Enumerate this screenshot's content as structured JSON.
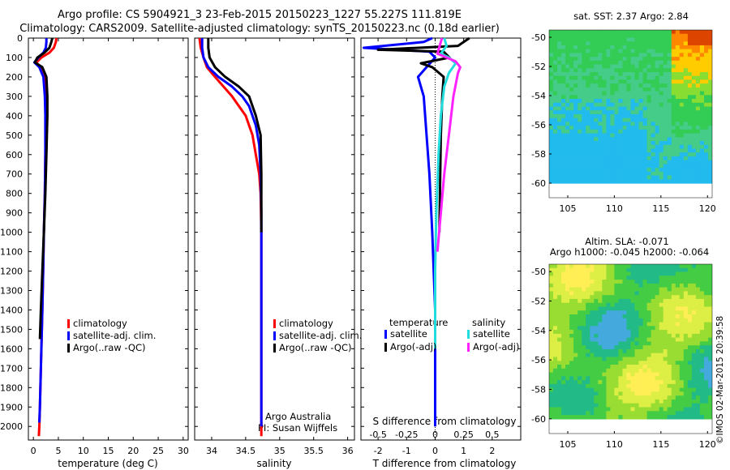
{
  "header": {
    "line1": "Argo profile: CS 5904921_3 23-Feb-2015 20150223_1227 55.227S 111.819E",
    "line2": "Climatology: CARS2009. Satellite-adjusted climatology: synTS_20150223.nc (0.18d earlier)"
  },
  "side_stamp": "©IMOS 02-Mar-2015 20:39:58",
  "colors": {
    "climatology": "#ff0000",
    "satellite": "#0000ff",
    "argo": "#000000",
    "sal_satellite": "#22dddd",
    "sal_argo": "#ff22ff"
  },
  "chart_data": [
    {
      "type": "line",
      "panel": "temperature",
      "xlabel": "temperature (deg C)",
      "xlim": [
        -1,
        31
      ],
      "xticks": [
        "0",
        "5",
        "10",
        "15",
        "20",
        "25",
        "30"
      ],
      "ylim": [
        2070,
        0
      ],
      "yticks": [
        "0",
        "100",
        "200",
        "300",
        "400",
        "500",
        "600",
        "700",
        "800",
        "900",
        "1000",
        "1100",
        "1200",
        "1300",
        "1400",
        "1500",
        "1600",
        "1700",
        "1800",
        "1900",
        "2000"
      ],
      "legend": [
        "climatology",
        "satellite-adj. clim.",
        "Argo(..raw -QC)"
      ],
      "series": [
        {
          "name": "climatology",
          "x": [
            4.6,
            4.5,
            4.1,
            3.2,
            1.6,
            0.6,
            1.3,
            2.2,
            2.4,
            2.5,
            2.4,
            2.3,
            2.1,
            1.95,
            1.8,
            1.6,
            1.4,
            1.3,
            1.2,
            1.1
          ],
          "y": [
            0,
            20,
            50,
            75,
            100,
            125,
            150,
            200,
            300,
            400,
            600,
            800,
            1000,
            1200,
            1400,
            1600,
            1800,
            1900,
            2000,
            2050
          ]
        },
        {
          "name": "satellite-adj. clim.",
          "x": [
            2.6,
            2.6,
            2.5,
            2.0,
            1.0,
            0.2,
            1.2,
            2.0,
            2.3,
            2.4,
            2.4,
            2.3,
            2.1,
            1.95,
            1.8,
            1.6,
            1.4,
            1.3,
            1.2
          ],
          "y": [
            0,
            20,
            50,
            75,
            100,
            125,
            150,
            200,
            300,
            400,
            600,
            800,
            1000,
            1200,
            1400,
            1600,
            1800,
            1900,
            1980
          ]
        },
        {
          "name": "Argo(..raw -QC)",
          "x": [
            3.8,
            3.6,
            3.2,
            2.2,
            0.8,
            0.3,
            1.8,
            2.6,
            2.8,
            2.8,
            2.6,
            2.4,
            2.1,
            1.8,
            1.5,
            1.3
          ],
          "y": [
            0,
            20,
            50,
            75,
            100,
            125,
            150,
            200,
            300,
            400,
            600,
            800,
            1000,
            1200,
            1400,
            1550
          ]
        }
      ]
    },
    {
      "type": "line",
      "panel": "salinity",
      "xlabel": "salinity",
      "xlim": [
        33.75,
        36.1
      ],
      "xticks": [
        "34",
        "34.5",
        "35",
        "35.5",
        "36"
      ],
      "ylim": [
        2070,
        0
      ],
      "legend": [
        "climatology",
        "satellite-adj. clim.",
        "Argo(..raw -QC)"
      ],
      "annotations": [
        "Argo Australia",
        "PI: Susan Wijffels"
      ],
      "series": [
        {
          "name": "climatology",
          "x": [
            33.82,
            33.84,
            33.88,
            33.93,
            34.0,
            34.1,
            34.2,
            34.3,
            34.4,
            34.5,
            34.6,
            34.65,
            34.7,
            34.72,
            34.73,
            34.73,
            34.73
          ],
          "y": [
            0,
            50,
            100,
            150,
            180,
            220,
            260,
            300,
            350,
            400,
            500,
            600,
            700,
            800,
            1000,
            1500,
            2050
          ]
        },
        {
          "name": "satellite-adj. clim.",
          "x": [
            33.86,
            33.86,
            33.88,
            33.95,
            34.1,
            34.3,
            34.45,
            34.55,
            34.65,
            34.7,
            34.72,
            34.73,
            34.73,
            34.73
          ],
          "y": [
            0,
            50,
            100,
            150,
            200,
            250,
            300,
            350,
            450,
            550,
            700,
            900,
            1500,
            2000
          ]
        },
        {
          "name": "Argo(..raw -QC)",
          "x": [
            33.95,
            33.95,
            33.97,
            34.05,
            34.2,
            34.4,
            34.55,
            34.65,
            34.72,
            34.73,
            34.73
          ],
          "y": [
            0,
            50,
            100,
            150,
            200,
            250,
            300,
            400,
            500,
            700,
            1000
          ]
        }
      ]
    },
    {
      "type": "line",
      "panel": "difference from climatology",
      "xlabel": "T difference from climatology",
      "x2label": "S difference from climatology",
      "xlim": [
        -2.6,
        3
      ],
      "xticks": [
        "-2",
        "-1",
        "0",
        "1",
        "2"
      ],
      "x2lim": [
        -0.65,
        0.75
      ],
      "x2ticks": [
        "-0.5",
        "-0.25",
        "0",
        "0.25",
        "0.5"
      ],
      "ylim": [
        2070,
        0
      ],
      "legend_groups": [
        {
          "title": "temperature",
          "items": [
            "satellite",
            "Argo(-adj)"
          ]
        },
        {
          "title": "salinity",
          "items": [
            "satellite",
            "Argo(-adj)"
          ]
        }
      ],
      "series": [
        {
          "name": "satellite (temperature)",
          "x": [
            -0.1,
            -0.4,
            -2.5,
            -0.2,
            0.0,
            -0.3,
            -0.6,
            -0.4,
            -0.3,
            -0.2,
            -0.1,
            0.0,
            0.0,
            0.0
          ],
          "y": [
            0,
            20,
            50,
            70,
            100,
            150,
            200,
            300,
            500,
            700,
            1000,
            1400,
            1800,
            2000
          ]
        },
        {
          "name": "Argo(-adj) (temperature)",
          "x": [
            1.2,
            0.8,
            -2.0,
            0.3,
            0.5,
            -0.5,
            -0.1,
            0.3,
            0.25,
            0.2,
            0.15
          ],
          "y": [
            0,
            40,
            60,
            70,
            100,
            130,
            150,
            200,
            300,
            500,
            1000
          ]
        },
        {
          "name": "satellite (salinity)",
          "x": [
            0.08,
            0.1,
            0.05,
            0.12,
            0.18,
            0.12,
            0.08,
            0.05,
            0.03,
            0.01,
            0.0,
            0.0
          ],
          "y": [
            0,
            40,
            80,
            100,
            130,
            180,
            250,
            400,
            600,
            900,
            1200,
            1600
          ]
        },
        {
          "name": "Argo(-adj) (salinity)",
          "x": [
            0.06,
            0.04,
            0.02,
            0.18,
            0.22,
            0.2,
            0.16,
            0.12,
            0.08,
            0.05,
            0.02
          ],
          "y": [
            0,
            40,
            80,
            120,
            150,
            180,
            300,
            500,
            700,
            900,
            1100
          ]
        }
      ]
    },
    {
      "type": "heatmap",
      "panel": "SST map",
      "title": "sat. SST: 2.37  Argo: 2.84",
      "xlim": [
        103,
        120.5
      ],
      "xticks": [
        "105",
        "110",
        "115",
        "120"
      ],
      "ylim": [
        -61,
        -49.5
      ],
      "yticks": [
        "-50",
        "-52",
        "-54",
        "-56",
        "-58",
        "-60"
      ],
      "colors": [
        "#22bbee",
        "#44cc88",
        "#33cc55",
        "#88dd33",
        "#ffcc00",
        "#ff8800",
        "#dd4400"
      ]
    },
    {
      "type": "heatmap",
      "panel": "SLA map",
      "title": "Altim. SLA: -0.071",
      "subtitle": "Argo h1000: -0.045 h2000: -0.064",
      "xlim": [
        103,
        120.5
      ],
      "xticks": [
        "105",
        "110",
        "115",
        "120"
      ],
      "ylim": [
        -61,
        -49.5
      ],
      "yticks": [
        "-50",
        "-52",
        "-54",
        "-56",
        "-58",
        "-60"
      ],
      "colors": [
        "#44aadd",
        "#22bb88",
        "#44cc44",
        "#99dd33",
        "#ddee44",
        "#ffee55"
      ]
    }
  ]
}
